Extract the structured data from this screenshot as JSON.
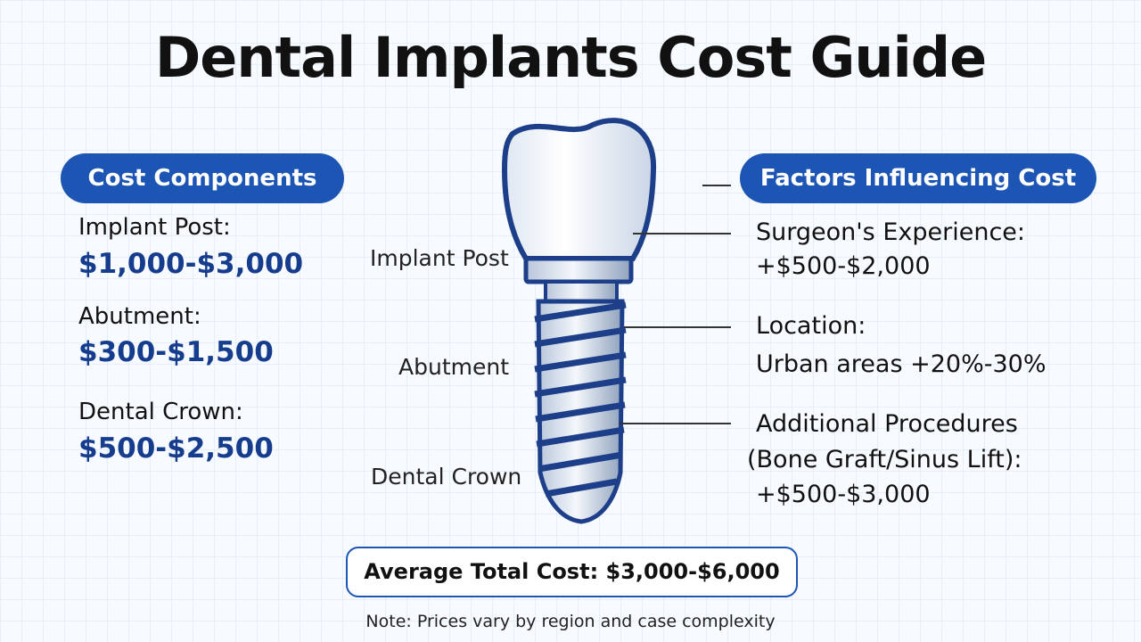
{
  "title": "Dental Implants Cost Guide",
  "left": {
    "heading": "Cost Components",
    "items": [
      {
        "label": "Implant Post:",
        "price": "$1,000-$3,000"
      },
      {
        "label": "Abutment:",
        "price": "$300-$1,500"
      },
      {
        "label": "Dental Crown:",
        "price": "$500-$2,500"
      }
    ]
  },
  "diagram": {
    "labels": [
      "Implant Post",
      "Abutment",
      "Dental Crown"
    ]
  },
  "right": {
    "heading": "Factors Influencing Cost",
    "items": [
      {
        "label": "Surgeon's Experience:",
        "value": "+$500-$2,000"
      },
      {
        "label": "Location:",
        "value": "Urban areas +20%-30%"
      },
      {
        "label": "Additional Procedures",
        "detail": "(Bone Graft/Sinus Lift):",
        "value": "+$500-$3,000"
      }
    ]
  },
  "total": "Average Total Cost: $3,000-$6,000",
  "note": "Note: Prices vary by region and case complexity"
}
